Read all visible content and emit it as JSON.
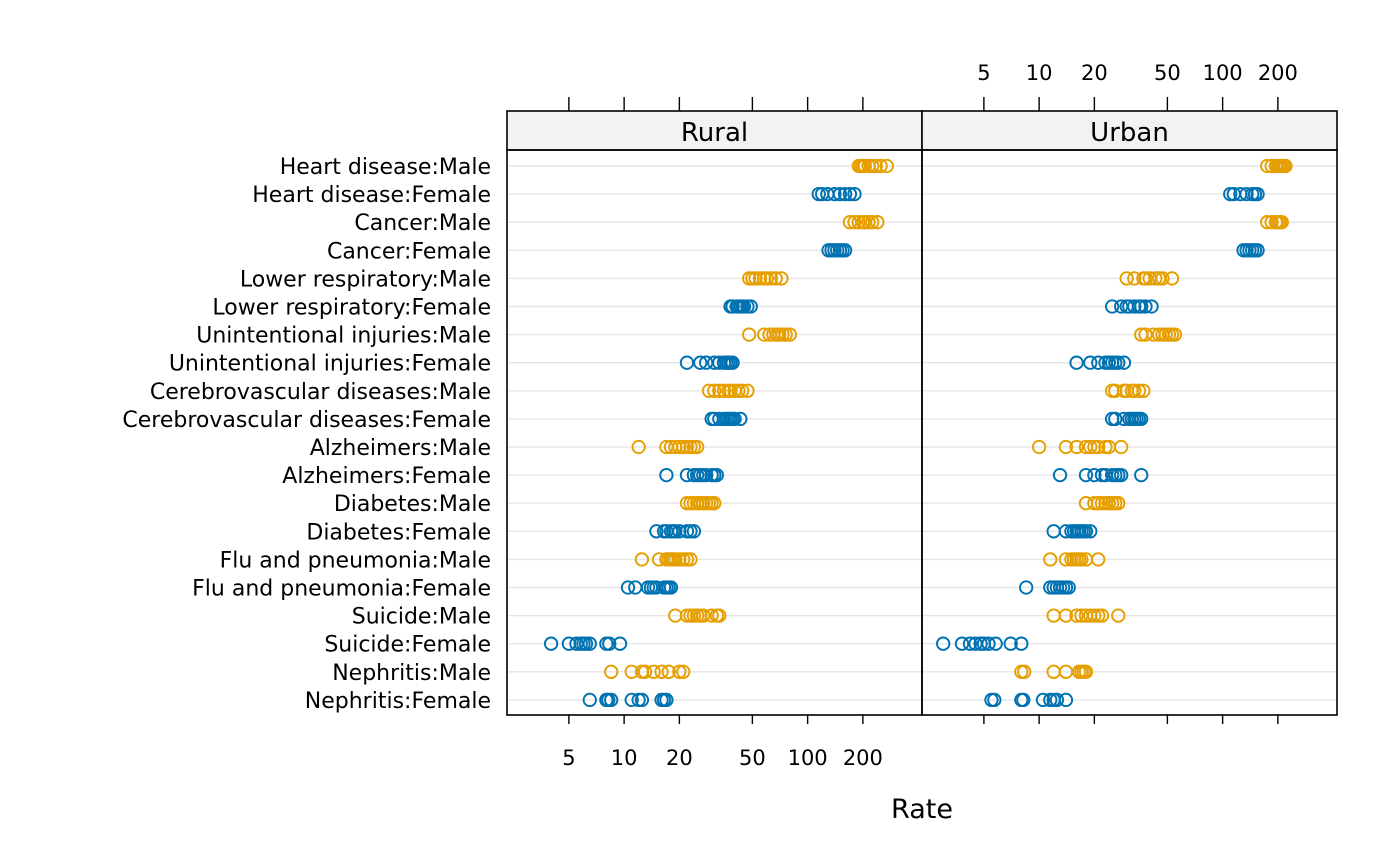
{
  "chart_data": {
    "type": "scatter",
    "xlabel": "Rate",
    "x_scale": "log",
    "xlim": [
      2.3,
      420
    ],
    "ticks": [
      5,
      10,
      20,
      50,
      100,
      200
    ],
    "colors": {
      "Female": "#0072b2",
      "Male": "#e69f00"
    },
    "categories": [
      "Nephritis:Female",
      "Nephritis:Male",
      "Suicide:Female",
      "Suicide:Male",
      "Flu and pneumonia:Female",
      "Flu and pneumonia:Male",
      "Diabetes:Female",
      "Diabetes:Male",
      "Alzheimers:Female",
      "Alzheimers:Male",
      "Cerebrovascular diseases:Female",
      "Cerebrovascular diseases:Male",
      "Unintentional injuries:Female",
      "Unintentional injuries:Male",
      "Lower respiratory:Female",
      "Lower respiratory:Male",
      "Cancer:Female",
      "Cancer:Male",
      "Heart disease:Female",
      "Heart disease:Male"
    ],
    "panels": [
      {
        "name": "Rural",
        "values": {
          "Heart disease:Male": [
            190,
            195,
            200,
            205,
            215,
            225,
            235,
            250,
            270
          ],
          "Heart disease:Female": [
            115,
            120,
            128,
            140,
            150,
            160,
            170,
            180
          ],
          "Cancer:Male": [
            170,
            180,
            190,
            200,
            205,
            215,
            225,
            240
          ],
          "Cancer:Female": [
            130,
            135,
            140,
            145,
            150,
            155,
            160
          ],
          "Lower respiratory:Male": [
            48,
            50,
            52,
            55,
            58,
            60,
            63,
            67,
            72
          ],
          "Lower respiratory:Female": [
            38,
            39,
            41,
            42,
            43,
            44,
            45,
            47,
            49
          ],
          "Unintentional injuries:Male": [
            48,
            58,
            62,
            65,
            68,
            70,
            73,
            76,
            80
          ],
          "Unintentional injuries:Female": [
            22,
            26,
            28,
            31,
            33,
            35,
            36,
            37,
            38,
            39
          ],
          "Cerebrovascular diseases:Male": [
            29,
            31,
            33,
            35,
            37,
            38,
            40,
            42,
            44,
            47
          ],
          "Cerebrovascular diseases:Female": [
            30,
            31,
            33,
            35,
            36,
            37,
            38,
            39,
            40,
            43
          ],
          "Alzheimers:Male": [
            12,
            17,
            18,
            19,
            20,
            21,
            22,
            23,
            24,
            25
          ],
          "Alzheimers:Female": [
            17,
            22,
            24,
            25,
            26,
            27,
            28,
            30,
            31,
            32
          ],
          "Diabetes:Male": [
            22,
            23,
            24,
            25,
            26,
            27,
            28,
            29,
            30,
            31
          ],
          "Diabetes:Female": [
            15,
            16.5,
            17,
            18,
            18.5,
            19,
            20,
            22,
            23,
            24
          ],
          "Flu and pneumonia:Male": [
            12.5,
            15.5,
            17,
            17.5,
            18,
            18.5,
            19,
            20,
            21,
            22,
            23
          ],
          "Flu and pneumonia:Female": [
            10.5,
            11.5,
            13.5,
            14,
            14.5,
            15,
            16.5,
            17,
            17.5,
            18
          ],
          "Suicide:Male": [
            19,
            22,
            23,
            24,
            25,
            26,
            27,
            30,
            32,
            33
          ],
          "Suicide:Female": [
            4,
            5,
            5.5,
            5.8,
            6,
            6.2,
            6.5,
            8,
            8.3,
            9.5
          ],
          "Nephritis:Male": [
            8.5,
            11,
            12.5,
            13,
            14.5,
            16,
            17.5,
            20,
            21
          ],
          "Nephritis:Female": [
            6.5,
            8,
            8.2,
            8.5,
            11,
            12,
            12.5,
            16,
            16.5,
            17
          ]
        }
      },
      {
        "name": "Urban",
        "values": {
          "Heart disease:Male": [
            175,
            185,
            195,
            200,
            205,
            210,
            215,
            220
          ],
          "Heart disease:Female": [
            110,
            115,
            125,
            135,
            145,
            150,
            155
          ],
          "Cancer:Male": [
            175,
            185,
            195,
            200,
            205,
            210
          ],
          "Cancer:Female": [
            130,
            135,
            140,
            145,
            150,
            155
          ],
          "Lower respiratory:Male": [
            30,
            33,
            37,
            38,
            40,
            43,
            45,
            47,
            53
          ],
          "Lower respiratory:Female": [
            25,
            28,
            30,
            31,
            33,
            35,
            36,
            38,
            41
          ],
          "Unintentional injuries:Male": [
            36,
            38,
            42,
            45,
            47,
            49,
            51,
            53,
            55
          ],
          "Unintentional injuries:Female": [
            16,
            19,
            21,
            23,
            24,
            25,
            26,
            27,
            29
          ],
          "Cerebrovascular diseases:Male": [
            25,
            26,
            29,
            30,
            32,
            33,
            35,
            37
          ],
          "Cerebrovascular diseases:Female": [
            25,
            26,
            29,
            31,
            32,
            33,
            34,
            35,
            36
          ],
          "Alzheimers:Male": [
            10,
            14,
            16,
            18,
            19,
            20,
            21,
            23,
            24,
            28
          ],
          "Alzheimers:Female": [
            13,
            18,
            20,
            22,
            23,
            25,
            26,
            27,
            28,
            36
          ],
          "Diabetes:Male": [
            18,
            20,
            21,
            22,
            23,
            24,
            25,
            26,
            27
          ],
          "Diabetes:Female": [
            12,
            14,
            15,
            15.5,
            16,
            16.5,
            17,
            17.5,
            18,
            19
          ],
          "Flu and pneumonia:Male": [
            11.5,
            14,
            15,
            15.5,
            16,
            16.5,
            17,
            18,
            21
          ],
          "Flu and pneumonia:Female": [
            8.5,
            11.5,
            12,
            12.5,
            13,
            13.5,
            14,
            14.5
          ],
          "Suicide:Male": [
            12,
            14,
            16,
            17,
            18,
            19,
            20,
            21,
            22,
            27
          ],
          "Suicide:Female": [
            3,
            3.8,
            4.2,
            4.5,
            4.8,
            5,
            5.3,
            5.8,
            7,
            8
          ],
          "Nephritis:Male": [
            8,
            8.3,
            12,
            14,
            16.5,
            17,
            17.5,
            18
          ],
          "Nephritis:Female": [
            5.5,
            5.7,
            8,
            8.2,
            10.5,
            11.5,
            12,
            12.5,
            14
          ]
        }
      }
    ]
  }
}
